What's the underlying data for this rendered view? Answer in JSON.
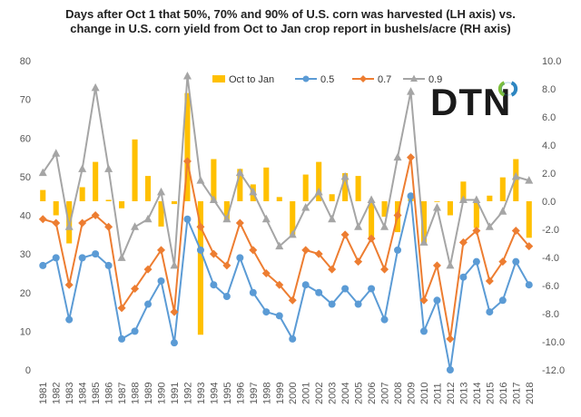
{
  "chart_data": {
    "type": "bar+line",
    "title": "Days after Oct 1 that 50%, 70%  and 90% of U.S. corn was harvested (LH axis) vs. change in U.S. corn yield from Oct to Jan crop report in bushels/acre (RH axis)",
    "title_lines": [
      "Days after Oct 1 that 50%, 70%  and 90% of U.S. corn was harvested (LH axis) vs.",
      "change in U.S. corn yield from Oct to Jan crop report in bushels/acre (RH axis)"
    ],
    "categories": [
      "1981",
      "1982",
      "1983",
      "1984",
      "1985",
      "1986",
      "1987",
      "1988",
      "1989",
      "1990",
      "1991",
      "1992",
      "1993",
      "1994",
      "1995",
      "1996",
      "1997",
      "1998",
      "1999",
      "2000",
      "2001",
      "2002",
      "2003",
      "2004",
      "2005",
      "2006",
      "2007",
      "2008",
      "2009",
      "2010",
      "2011",
      "2012",
      "2013",
      "2014",
      "2015",
      "2016",
      "2017",
      "2018"
    ],
    "left_axis": {
      "ylim": [
        0,
        80
      ],
      "ticks": [
        "0",
        "10",
        "20",
        "30",
        "40",
        "50",
        "60",
        "70",
        "80"
      ]
    },
    "right_axis": {
      "ylim": [
        -12,
        10
      ],
      "ticks": [
        "-12.0",
        "-10.0",
        "-8.0",
        "-6.0",
        "-4.0",
        "-2.0",
        "0.0",
        "2.0",
        "4.0",
        "6.0",
        "8.0",
        "10.0"
      ]
    },
    "series": [
      {
        "name": "Oct to Jan",
        "type": "bar",
        "axis": "right",
        "color": "#FFC000",
        "values": [
          0.8,
          -1.0,
          -3.0,
          1.0,
          2.8,
          0.1,
          -0.5,
          4.4,
          1.8,
          -1.8,
          -0.2,
          7.7,
          -9.5,
          3.0,
          -1.4,
          2.3,
          1.2,
          2.4,
          0.3,
          -2.4,
          1.9,
          2.8,
          0.5,
          2.0,
          1.8,
          -2.6,
          -1.1,
          -2.2,
          0.5,
          -3.0,
          0.0,
          -1.0,
          1.4,
          -1.9,
          0.4,
          1.7,
          3.0,
          -2.6
        ]
      },
      {
        "name": "0.5",
        "type": "line",
        "axis": "left",
        "color": "#5B9BD5",
        "values": [
          27,
          29,
          13,
          29,
          30,
          27,
          8,
          10,
          17,
          23,
          7,
          39,
          31,
          22,
          19,
          29,
          20,
          15,
          14,
          8,
          22,
          20,
          17,
          21,
          17,
          21,
          13,
          31,
          45,
          10,
          18,
          0,
          24,
          28,
          15,
          18,
          28,
          22
        ]
      },
      {
        "name": "0.7",
        "type": "line",
        "axis": "left",
        "color": "#ED7D31",
        "values": [
          39,
          38,
          22,
          38,
          40,
          37,
          16,
          21,
          26,
          31,
          15,
          54,
          37,
          30,
          27,
          38,
          31,
          25,
          22,
          18,
          31,
          30,
          26,
          35,
          28,
          34,
          26,
          40,
          55,
          18,
          27,
          8,
          33,
          36,
          23,
          28,
          36,
          32
        ]
      },
      {
        "name": "0.9",
        "type": "line",
        "axis": "left",
        "color": "#A5A5A5",
        "values": [
          51,
          56,
          37,
          52,
          73,
          52,
          29,
          37,
          39,
          46,
          27,
          76,
          49,
          44,
          39,
          51,
          46,
          39,
          32,
          35,
          42,
          46,
          39,
          50,
          37,
          44,
          37,
          55,
          72,
          33,
          42,
          27,
          44,
          44,
          37,
          41,
          50,
          49
        ]
      }
    ],
    "legend": {
      "placement": "top",
      "items": [
        "Oct to Jan",
        "0.5",
        "0.7",
        "0.9"
      ]
    },
    "grid": false
  },
  "logo": {
    "text": "DTN",
    "accent_colors": [
      "#2E86C1",
      "#7DBE3B"
    ]
  }
}
